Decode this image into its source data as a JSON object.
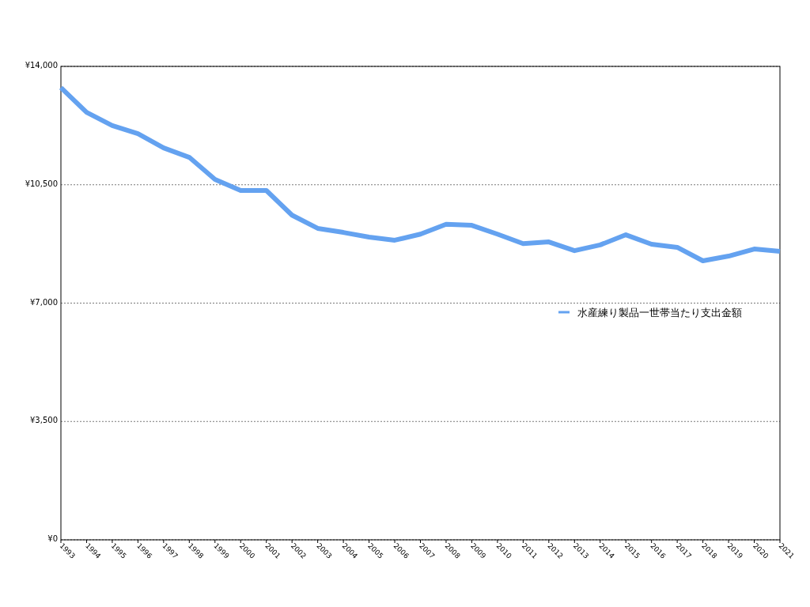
{
  "chart_data": {
    "type": "line",
    "x": [
      1993,
      1994,
      1995,
      1996,
      1997,
      1998,
      1999,
      2000,
      2001,
      2002,
      2003,
      2004,
      2005,
      2006,
      2007,
      2008,
      2009,
      2010,
      2011,
      2012,
      2013,
      2014,
      2015,
      2016,
      2017,
      2018,
      2019,
      2020,
      2021
    ],
    "series": [
      {
        "name": "水産練り製品一世帯当たり支出金額",
        "color": "#64a2f0",
        "values": [
          13370,
          12640,
          12250,
          12010,
          11590,
          11310,
          10660,
          10330,
          10330,
          9600,
          9210,
          9090,
          8950,
          8860,
          9040,
          9330,
          9300,
          9040,
          8760,
          8810,
          8550,
          8720,
          9020,
          8740,
          8650,
          8250,
          8390,
          8600,
          8530
        ]
      }
    ],
    "xlim": [
      1993,
      2021
    ],
    "xticks": [
      1993,
      1994,
      1995,
      1996,
      1997,
      1998,
      1999,
      2000,
      2001,
      2002,
      2003,
      2004,
      2005,
      2006,
      2007,
      2008,
      2009,
      2010,
      2011,
      2012,
      2013,
      2014,
      2015,
      2016,
      2017,
      2018,
      2019,
      2020,
      2021
    ],
    "ylim": [
      0,
      14000
    ],
    "yticks": [
      {
        "value": 0,
        "label": "¥0"
      },
      {
        "value": 3500,
        "label": "¥3,500"
      },
      {
        "value": 7000,
        "label": "¥7,000"
      },
      {
        "value": 10500,
        "label": "¥10,500"
      },
      {
        "value": 14000,
        "label": "¥14,000"
      }
    ],
    "grid": "y",
    "legend": "right",
    "marker": "none",
    "line_style": "solid"
  }
}
